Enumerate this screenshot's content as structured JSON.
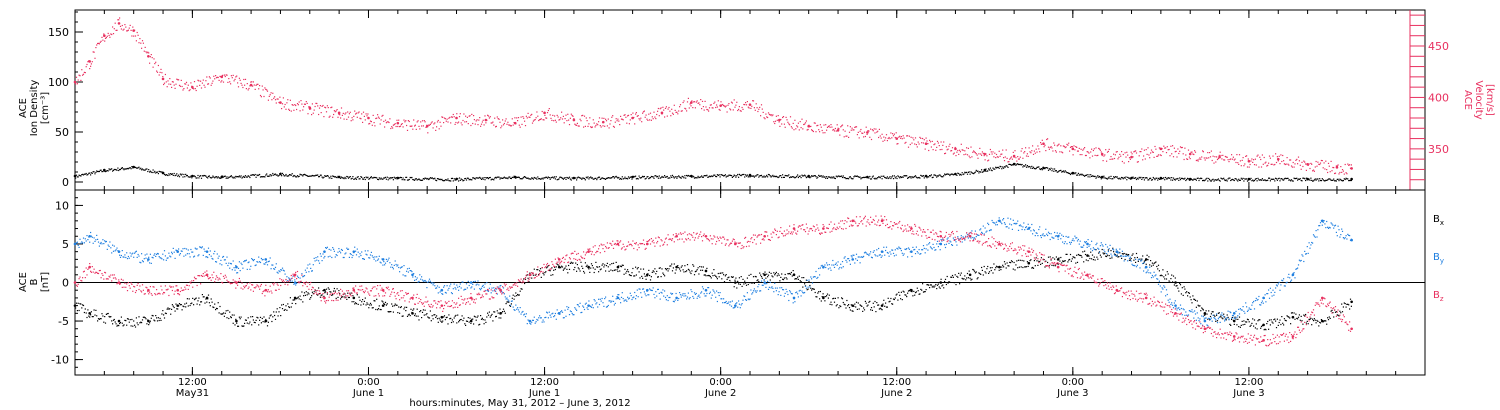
{
  "colors": {
    "black": "#000000",
    "pink": "#e8305f",
    "blue": "#1f7fe0"
  },
  "chart_data": [
    {
      "type": "scatter",
      "panel": "top",
      "ylabel_left": [
        "ACE",
        "Ion Density",
        "[cm⁻³]"
      ],
      "ylabel_right": [
        "ACE",
        "Velocity",
        "[km/s]"
      ],
      "ylim": [
        -8,
        172
      ],
      "yticks": [
        0,
        50,
        100,
        150
      ],
      "ylim_right": [
        310,
        485
      ],
      "yticks_right": [
        350,
        400,
        450
      ],
      "grid": false,
      "series": [
        {
          "key": "density",
          "axis": "left",
          "color": "#000000",
          "x": [
            0,
            2,
            4,
            6,
            8,
            10,
            14,
            18,
            22,
            26,
            30,
            34,
            38,
            42,
            46,
            50,
            54,
            58,
            60,
            62,
            64,
            66,
            68,
            70,
            72,
            74,
            76,
            80,
            84,
            87
          ],
          "y": [
            6,
            12,
            15,
            9,
            6,
            5,
            8,
            5,
            4,
            3,
            5,
            4,
            5,
            6,
            7,
            6,
            5,
            6,
            8,
            12,
            18,
            14,
            9,
            5,
            4,
            4,
            3,
            3,
            3,
            3
          ]
        },
        {
          "key": "velocity",
          "axis": "right",
          "color": "#e8305f",
          "x": [
            0,
            1,
            2,
            3,
            4,
            5,
            6,
            8,
            10,
            12,
            14,
            16,
            18,
            20,
            22,
            24,
            26,
            28,
            30,
            32,
            34,
            36,
            38,
            40,
            42,
            44,
            46,
            48,
            50,
            52,
            54,
            56,
            58,
            60,
            62,
            64,
            66,
            68,
            70,
            72,
            74,
            76,
            78,
            80,
            82,
            84,
            86,
            87
          ],
          "y": [
            415,
            435,
            460,
            472,
            465,
            440,
            418,
            410,
            420,
            412,
            395,
            390,
            385,
            380,
            375,
            372,
            380,
            378,
            375,
            385,
            378,
            376,
            380,
            385,
            395,
            392,
            393,
            378,
            372,
            368,
            366,
            360,
            355,
            350,
            345,
            343,
            355,
            350,
            345,
            342,
            350,
            345,
            342,
            338,
            340,
            335,
            332,
            331
          ]
        }
      ]
    },
    {
      "type": "scatter",
      "panel": "bottom",
      "ylabel_left": [
        "ACE",
        "B",
        "[nT]"
      ],
      "ylim": [
        -12,
        12
      ],
      "yticks": [
        -10,
        -5,
        0,
        5,
        10
      ],
      "zero_line": true,
      "grid": false,
      "legend_position": "right",
      "series": [
        {
          "key": "bx",
          "name": "B",
          "sub": "x",
          "color": "#000000",
          "x": [
            0,
            1,
            3,
            5,
            7,
            9,
            11,
            13,
            15,
            17,
            19,
            21,
            23,
            25,
            27,
            29,
            31,
            33,
            35,
            37,
            39,
            41,
            43,
            45,
            47,
            49,
            51,
            53,
            55,
            57,
            59,
            61,
            63,
            65,
            67,
            69,
            71,
            73,
            75,
            77,
            79,
            81,
            83,
            85,
            87
          ],
          "y": [
            -3,
            -4,
            -5,
            -5,
            -3,
            -2,
            -5,
            -5,
            -2,
            -1,
            -2,
            -3,
            -4,
            -4.5,
            -5,
            -4,
            1,
            2,
            2,
            2,
            1,
            2,
            1.5,
            0,
            1,
            1,
            -2,
            -3,
            -3,
            -1,
            0,
            1,
            2,
            2.5,
            3,
            3.5,
            4,
            3,
            0,
            -4,
            -5,
            -5.5,
            -4.5,
            -5,
            -2.5
          ]
        },
        {
          "key": "by",
          "name": "B",
          "sub": "y",
          "color": "#1f7fe0",
          "x": [
            0,
            1,
            3,
            5,
            7,
            9,
            11,
            13,
            15,
            17,
            19,
            21,
            23,
            25,
            27,
            29,
            31,
            33,
            35,
            37,
            39,
            41,
            43,
            45,
            47,
            49,
            51,
            53,
            55,
            57,
            59,
            61,
            63,
            65,
            67,
            69,
            71,
            73,
            75,
            77,
            79,
            81,
            83,
            85,
            87
          ],
          "y": [
            5,
            6,
            4,
            3,
            4,
            4,
            2,
            3,
            0,
            4,
            4,
            3,
            1,
            -1,
            0,
            -1,
            -5,
            -4,
            -3,
            -2,
            -1,
            -2,
            -1,
            -3,
            0,
            -2,
            2,
            3,
            4,
            4,
            5,
            6,
            8,
            7,
            6,
            5,
            4,
            2,
            -3,
            -5,
            -4,
            -2,
            1,
            8,
            5.5
          ]
        },
        {
          "key": "bz",
          "name": "B",
          "sub": "z",
          "color": "#e8305f",
          "x": [
            0,
            1,
            3,
            5,
            7,
            9,
            11,
            13,
            15,
            17,
            19,
            21,
            23,
            25,
            27,
            29,
            31,
            33,
            35,
            37,
            39,
            41,
            43,
            45,
            47,
            49,
            51,
            53,
            55,
            57,
            59,
            61,
            63,
            65,
            67,
            69,
            71,
            73,
            75,
            77,
            79,
            81,
            83,
            85,
            87
          ],
          "y": [
            0,
            2,
            0,
            -1,
            -1,
            1,
            0,
            -1,
            1,
            -2,
            -1,
            -1,
            -2,
            -3,
            -2,
            -1,
            1,
            3,
            4,
            5,
            5,
            6,
            6,
            5,
            6,
            7,
            7,
            8,
            8,
            7,
            6,
            6,
            5,
            4,
            2,
            1,
            -1,
            -2,
            -4,
            -6,
            -7,
            -7.5,
            -7,
            -2,
            -6
          ]
        }
      ]
    }
  ],
  "x_axis": {
    "label": "hours:minutes, May 31, 2012 – June  3, 2012",
    "xlim": [
      0,
      92
    ],
    "minor_step": 2,
    "major_ticks": [
      {
        "x": 8,
        "time": "12:00",
        "date": "May31"
      },
      {
        "x": 20,
        "time": "0:00",
        "date": "June 1"
      },
      {
        "x": 32,
        "time": "12:00",
        "date": "June 1"
      },
      {
        "x": 44,
        "time": "0:00",
        "date": "June 2"
      },
      {
        "x": 56,
        "time": "12:00",
        "date": "June 2"
      },
      {
        "x": 68,
        "time": "0:00",
        "date": "June 3"
      },
      {
        "x": 80,
        "time": "12:00",
        "date": "June 3"
      }
    ]
  }
}
